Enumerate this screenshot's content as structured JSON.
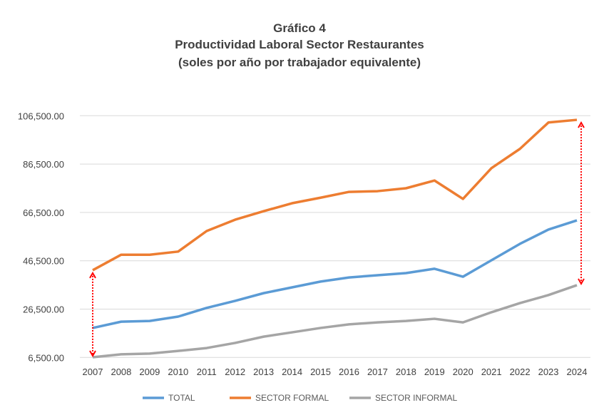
{
  "chart_data": {
    "type": "line",
    "title": "Gráfico 4",
    "subtitle": "Productividad Laboral Sector Restaurantes",
    "subtitle2": "(soles por año por trabajador equivalente)",
    "xlabel": "",
    "ylabel": "",
    "ylim": [
      6500,
      106500
    ],
    "yticks": [
      6500,
      26500,
      46500,
      66500,
      86500,
      106500
    ],
    "ytick_labels": [
      "6,500.00",
      "26,500.00",
      "46,500.00",
      "66,500.00",
      "86,500.00",
      "106,500.00"
    ],
    "grid": true,
    "legend": "bottom",
    "categories": [
      "2007",
      "2008",
      "2009",
      "2010",
      "2011",
      "2012",
      "2013",
      "2014",
      "2015",
      "2016",
      "2017",
      "2018",
      "2019",
      "2020",
      "2021",
      "2022",
      "2023",
      "2024"
    ],
    "series": [
      {
        "name": "TOTAL",
        "color": "#5b9bd5",
        "values": [
          18700,
          21300,
          21600,
          23400,
          27000,
          29900,
          33100,
          35500,
          37900,
          39600,
          40500,
          41400,
          43200,
          39900,
          46700,
          53500,
          59400,
          63200
        ]
      },
      {
        "name": "SECTOR FORMAL",
        "color": "#ed7d31",
        "values": [
          42600,
          49000,
          49000,
          50300,
          58800,
          63500,
          67000,
          70300,
          72600,
          75000,
          75300,
          76500,
          79700,
          72100,
          84800,
          92800,
          103700,
          104800
        ]
      },
      {
        "name": "SECTOR INFORMAL",
        "color": "#a5a5a5",
        "values": [
          6600,
          7800,
          8100,
          9200,
          10400,
          12500,
          15100,
          16900,
          18700,
          20200,
          21000,
          21600,
          22500,
          21000,
          25200,
          29000,
          32300,
          36400
        ]
      }
    ],
    "annotations": [
      {
        "type": "double-arrow",
        "color": "#ff0000",
        "year": "2007",
        "from_series": "SECTOR INFORMAL",
        "to_series": "SECTOR FORMAL"
      },
      {
        "type": "double-arrow",
        "color": "#ff0000",
        "year": "2024",
        "from_series": "SECTOR INFORMAL",
        "to_series": "SECTOR FORMAL"
      }
    ]
  }
}
